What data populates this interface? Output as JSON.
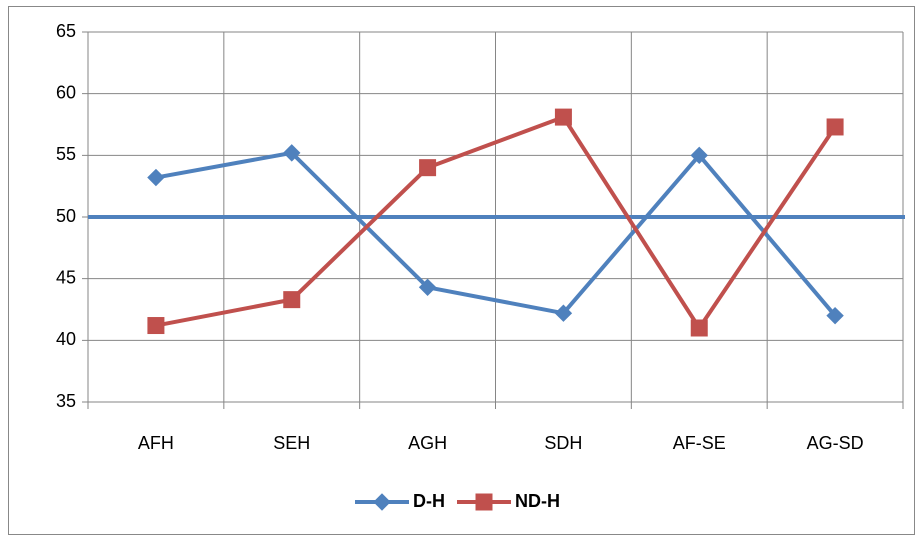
{
  "chart_data": {
    "type": "line",
    "categories": [
      "AFH",
      "SEH",
      "AGH",
      "SDH",
      "AF-SE",
      "AG-SD"
    ],
    "series": [
      {
        "name": "D-H",
        "color": "#4f81bd",
        "marker": "diamond",
        "values": [
          53.2,
          55.2,
          44.3,
          42.2,
          55.0,
          42.0
        ]
      },
      {
        "name": "ND-H",
        "color": "#c0504d",
        "marker": "square",
        "values": [
          41.2,
          43.3,
          54.0,
          58.1,
          41.0,
          57.3
        ]
      }
    ],
    "reference_line": {
      "value": 50,
      "color": "#4f81bd"
    },
    "ylim": [
      35,
      65
    ],
    "yticks": [
      35,
      40,
      45,
      50,
      55,
      60,
      65
    ],
    "grid": true,
    "legend": "bottom"
  }
}
